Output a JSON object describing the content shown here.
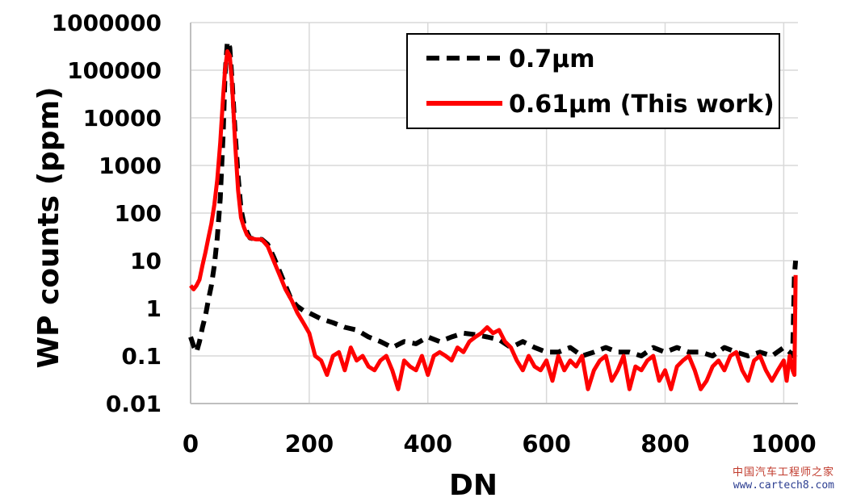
{
  "chart_data": {
    "type": "line",
    "title": "",
    "xlabel": "DN",
    "ylabel": "WP counts (ppm)",
    "xlim": [
      0,
      1024
    ],
    "ylim": [
      0.01,
      1000000
    ],
    "y_scale": "log",
    "x_ticks": [
      "0",
      "200",
      "400",
      "600",
      "800",
      "1000"
    ],
    "y_ticks": [
      "0.01",
      "0.1",
      "1",
      "10",
      "100",
      "1000",
      "10000",
      "100000",
      "1000000"
    ],
    "grid": "on",
    "legend_position": "top-right",
    "series": [
      {
        "name": "0.7μm",
        "style": "dashed",
        "color": "#000000",
        "x": [
          0,
          6,
          10,
          15,
          20,
          25,
          30,
          35,
          40,
          45,
          50,
          55,
          58,
          62,
          66,
          70,
          75,
          80,
          85,
          90,
          95,
          100,
          110,
          120,
          130,
          140,
          150,
          160,
          170,
          180,
          190,
          200,
          220,
          240,
          260,
          280,
          300,
          320,
          340,
          360,
          380,
          400,
          420,
          440,
          460,
          480,
          500,
          520,
          540,
          560,
          580,
          600,
          620,
          640,
          660,
          680,
          700,
          720,
          740,
          760,
          780,
          800,
          820,
          840,
          860,
          880,
          900,
          920,
          940,
          960,
          980,
          1000,
          1010,
          1015,
          1018,
          1020
        ],
        "y": [
          0.25,
          0.15,
          0.12,
          0.2,
          0.4,
          0.7,
          1.5,
          3,
          8,
          30,
          200,
          5000,
          80000,
          400000,
          300000,
          60000,
          5000,
          600,
          120,
          60,
          40,
          30,
          28,
          28,
          22,
          12,
          6,
          3,
          1.5,
          1.1,
          0.9,
          0.8,
          0.6,
          0.5,
          0.4,
          0.35,
          0.25,
          0.2,
          0.15,
          0.2,
          0.18,
          0.25,
          0.2,
          0.25,
          0.3,
          0.28,
          0.25,
          0.22,
          0.15,
          0.2,
          0.15,
          0.12,
          0.12,
          0.15,
          0.1,
          0.12,
          0.15,
          0.12,
          0.12,
          0.1,
          0.15,
          0.12,
          0.15,
          0.12,
          0.12,
          0.1,
          0.15,
          0.12,
          0.1,
          0.12,
          0.1,
          0.15,
          0.12,
          0.1,
          5,
          10
        ]
      },
      {
        "name": "0.61μm (This work)",
        "style": "solid",
        "color": "#ff0000",
        "x": [
          0,
          5,
          10,
          15,
          20,
          25,
          30,
          35,
          40,
          45,
          50,
          55,
          58,
          62,
          66,
          70,
          75,
          80,
          85,
          90,
          95,
          100,
          110,
          120,
          130,
          140,
          150,
          160,
          170,
          180,
          190,
          200,
          210,
          220,
          230,
          240,
          250,
          260,
          270,
          280,
          290,
          300,
          310,
          320,
          330,
          340,
          350,
          360,
          370,
          380,
          390,
          400,
          410,
          420,
          430,
          440,
          450,
          460,
          470,
          480,
          490,
          500,
          510,
          520,
          530,
          540,
          550,
          560,
          570,
          580,
          590,
          600,
          610,
          620,
          630,
          640,
          650,
          660,
          670,
          680,
          690,
          700,
          710,
          720,
          730,
          740,
          750,
          760,
          770,
          780,
          790,
          800,
          810,
          820,
          830,
          840,
          850,
          860,
          870,
          880,
          890,
          900,
          910,
          920,
          930,
          940,
          950,
          960,
          970,
          980,
          990,
          1000,
          1005,
          1010,
          1015,
          1018,
          1020
        ],
        "y": [
          3,
          2.5,
          3,
          4,
          8,
          15,
          30,
          60,
          150,
          500,
          3000,
          30000,
          100000,
          250000,
          200000,
          50000,
          3000,
          300,
          80,
          50,
          35,
          30,
          28,
          28,
          20,
          10,
          5,
          2.5,
          1.5,
          0.8,
          0.5,
          0.3,
          0.1,
          0.08,
          0.04,
          0.1,
          0.12,
          0.05,
          0.15,
          0.08,
          0.1,
          0.06,
          0.05,
          0.08,
          0.1,
          0.05,
          0.02,
          0.08,
          0.06,
          0.05,
          0.1,
          0.04,
          0.1,
          0.12,
          0.1,
          0.08,
          0.15,
          0.12,
          0.2,
          0.25,
          0.3,
          0.4,
          0.3,
          0.35,
          0.2,
          0.15,
          0.08,
          0.05,
          0.1,
          0.06,
          0.05,
          0.08,
          0.03,
          0.1,
          0.05,
          0.08,
          0.06,
          0.1,
          0.02,
          0.05,
          0.08,
          0.1,
          0.03,
          0.05,
          0.1,
          0.02,
          0.06,
          0.05,
          0.08,
          0.1,
          0.03,
          0.05,
          0.02,
          0.06,
          0.08,
          0.1,
          0.05,
          0.02,
          0.03,
          0.06,
          0.08,
          0.05,
          0.1,
          0.12,
          0.05,
          0.03,
          0.08,
          0.1,
          0.05,
          0.03,
          0.05,
          0.08,
          0.03,
          0.1,
          0.05,
          0.04,
          5
        ]
      }
    ]
  },
  "watermark": {
    "line1": "中国汽车工程师之家",
    "line2": "www.cartech8.com"
  }
}
